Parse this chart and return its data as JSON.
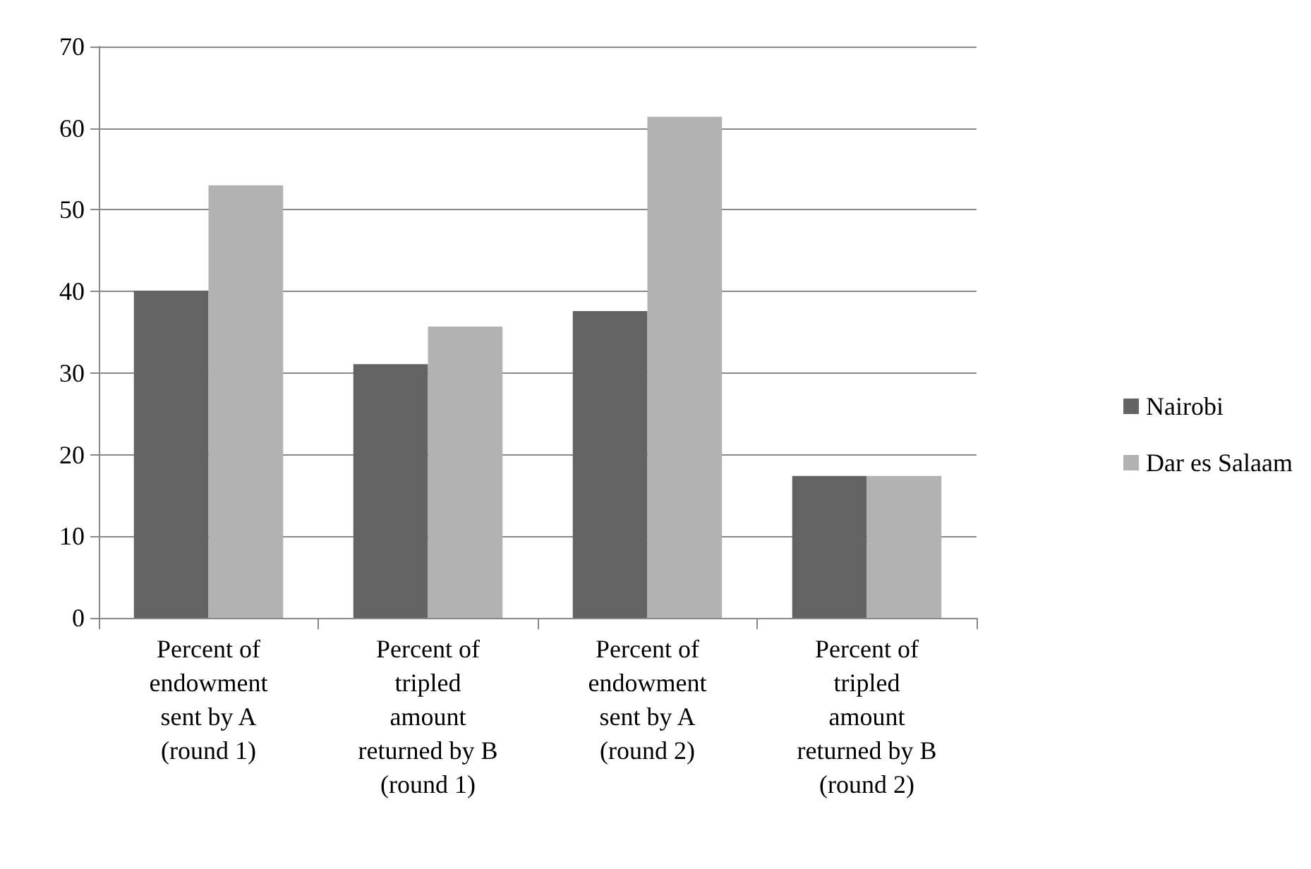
{
  "chart_data": {
    "type": "bar",
    "categories": [
      "Percent of\nendowment\nsent by A\n(round 1)",
      "Percent of\ntripled\namount\nreturned by B\n(round 1)",
      "Percent of\nendowment\nsent by A\n(round 2)",
      "Percent of\ntripled\namount\nreturned by B\n(round 2)"
    ],
    "series": [
      {
        "name": "Nairobi",
        "color": "#636363",
        "values": [
          40.1,
          31.1,
          37.6,
          17.4
        ]
      },
      {
        "name": "Dar es Salaam",
        "color": "#b2b2b2",
        "values": [
          53.0,
          35.7,
          61.4,
          17.4
        ]
      }
    ],
    "ylim": [
      0,
      70
    ],
    "yticks": [
      0,
      10,
      20,
      30,
      40,
      50,
      60,
      70
    ],
    "grid": "y",
    "legend": "right"
  }
}
